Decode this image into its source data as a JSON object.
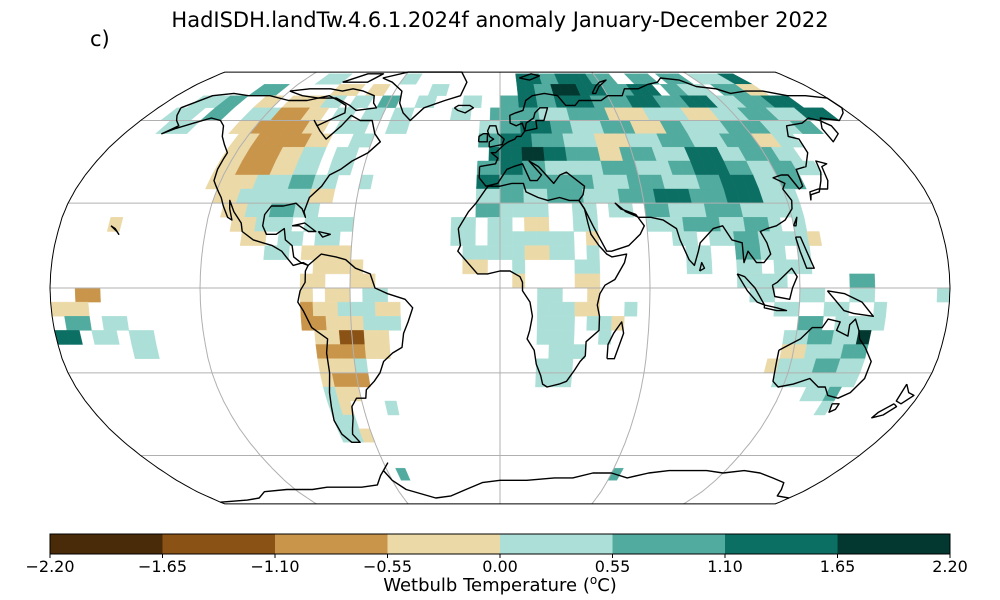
{
  "title": "HadISDH.landTw.4.6.1.2024f anomaly January-December 2022",
  "panel_label": "c)",
  "colorbar": {
    "label_text": "Wetbulb Temperature (",
    "label_sup": "o",
    "label_end": "C)",
    "ticks": [
      "−2.20",
      "−1.65",
      "−1.10",
      "−0.55",
      "0.00",
      "0.55",
      "1.10",
      "1.65",
      "2.20"
    ],
    "bins": [
      {
        "min": -2.2,
        "max": -1.65,
        "color": "#4a2b09"
      },
      {
        "min": -1.65,
        "max": -1.1,
        "color": "#8a5215"
      },
      {
        "min": -1.1,
        "max": -0.55,
        "color": "#c8954a"
      },
      {
        "min": -0.55,
        "max": 0.0,
        "color": "#ecd9a8"
      },
      {
        "min": 0.0,
        "max": 0.55,
        "color": "#acdfd7"
      },
      {
        "min": 0.55,
        "max": 1.1,
        "color": "#52ab9f"
      },
      {
        "min": 1.1,
        "max": 1.65,
        "color": "#0c6f64"
      },
      {
        "min": 1.65,
        "max": 2.2,
        "color": "#023830"
      }
    ]
  },
  "projection": "Robinson",
  "grid": true
}
